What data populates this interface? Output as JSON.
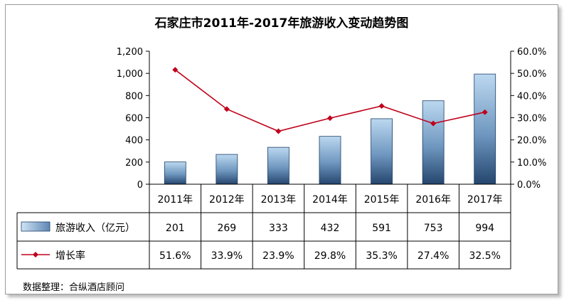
{
  "chart_data": {
    "type": "bar",
    "title": "石家庄市2011年-2017年旅游收入变动趋势图",
    "categories": [
      "2011年",
      "2012年",
      "2013年",
      "2014年",
      "2015年",
      "2016年",
      "2017年"
    ],
    "series": [
      {
        "name": "旅游收入（亿元）",
        "type": "bar",
        "axis": "left",
        "values": [
          201,
          269,
          333,
          432,
          591,
          753,
          994
        ],
        "labels": [
          "201",
          "269",
          "333",
          "432",
          "591",
          "753",
          "994"
        ],
        "color": "#4f81bd"
      },
      {
        "name": "增长率",
        "type": "line",
        "axis": "right",
        "values": [
          51.6,
          33.9,
          23.9,
          29.8,
          35.3,
          27.4,
          32.5
        ],
        "labels": [
          "51.6%",
          "33.9%",
          "23.9%",
          "29.8%",
          "35.3%",
          "27.4%",
          "32.5%"
        ],
        "color": "#c0001a"
      }
    ],
    "y_left": {
      "range": [
        0,
        1200
      ],
      "ticks": [
        0,
        200,
        400,
        600,
        800,
        1000,
        1200
      ],
      "tick_labels": [
        "0",
        "200",
        "400",
        "600",
        "800",
        "1,000",
        "1,200"
      ]
    },
    "y_right": {
      "range": [
        0,
        60
      ],
      "ticks": [
        0,
        10,
        20,
        30,
        40,
        50,
        60
      ],
      "tick_labels": [
        "0.0%",
        "10.0%",
        "20.0%",
        "30.0%",
        "40.0%",
        "50.0%",
        "60.0%"
      ]
    },
    "grid": false,
    "legend": "data-table-left"
  },
  "source_note": "数据整理：合纵酒店顾问"
}
